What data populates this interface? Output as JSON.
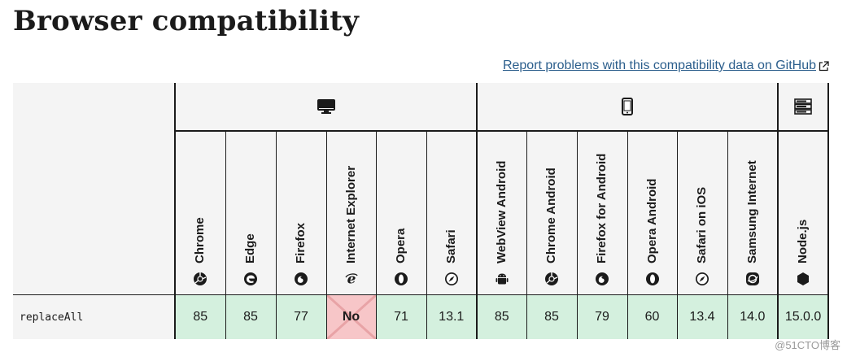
{
  "page": {
    "title": "Browser compatibility",
    "report_link": "Report problems with this compatibility data on GitHub"
  },
  "groups": [
    {
      "name": "desktop",
      "icon": "desktop-icon"
    },
    {
      "name": "mobile",
      "icon": "mobile-icon"
    },
    {
      "name": "server",
      "icon": "server-icon"
    }
  ],
  "browsers": [
    {
      "name": "Chrome",
      "icon": "chrome-icon"
    },
    {
      "name": "Edge",
      "icon": "edge-icon"
    },
    {
      "name": "Firefox",
      "icon": "firefox-icon"
    },
    {
      "name": "Internet Explorer",
      "icon": "ie-icon"
    },
    {
      "name": "Opera",
      "icon": "opera-icon"
    },
    {
      "name": "Safari",
      "icon": "safari-icon"
    },
    {
      "name": "WebView Android",
      "icon": "android-icon"
    },
    {
      "name": "Chrome Android",
      "icon": "chrome-icon"
    },
    {
      "name": "Firefox for Android",
      "icon": "firefox-icon"
    },
    {
      "name": "Opera Android",
      "icon": "opera-icon"
    },
    {
      "name": "Safari on iOS",
      "icon": "safari-icon"
    },
    {
      "name": "Samsung Internet",
      "icon": "samsung-icon"
    },
    {
      "name": "Node.js",
      "icon": "nodejs-icon"
    }
  ],
  "rows": [
    {
      "feature": "replaceAll",
      "values": [
        "85",
        "85",
        "77",
        "No",
        "71",
        "13.1",
        "85",
        "85",
        "79",
        "60",
        "13.4",
        "14.0",
        "15.0.0"
      ],
      "support": [
        "yes",
        "yes",
        "yes",
        "no",
        "yes",
        "yes",
        "yes",
        "yes",
        "yes",
        "yes",
        "yes",
        "yes",
        "yes"
      ]
    }
  ],
  "colors": {
    "supported": "#d4f0de",
    "unsupported": "#f7c6c8",
    "link": "#2b5e8c"
  },
  "watermark": "@51CTO博客"
}
